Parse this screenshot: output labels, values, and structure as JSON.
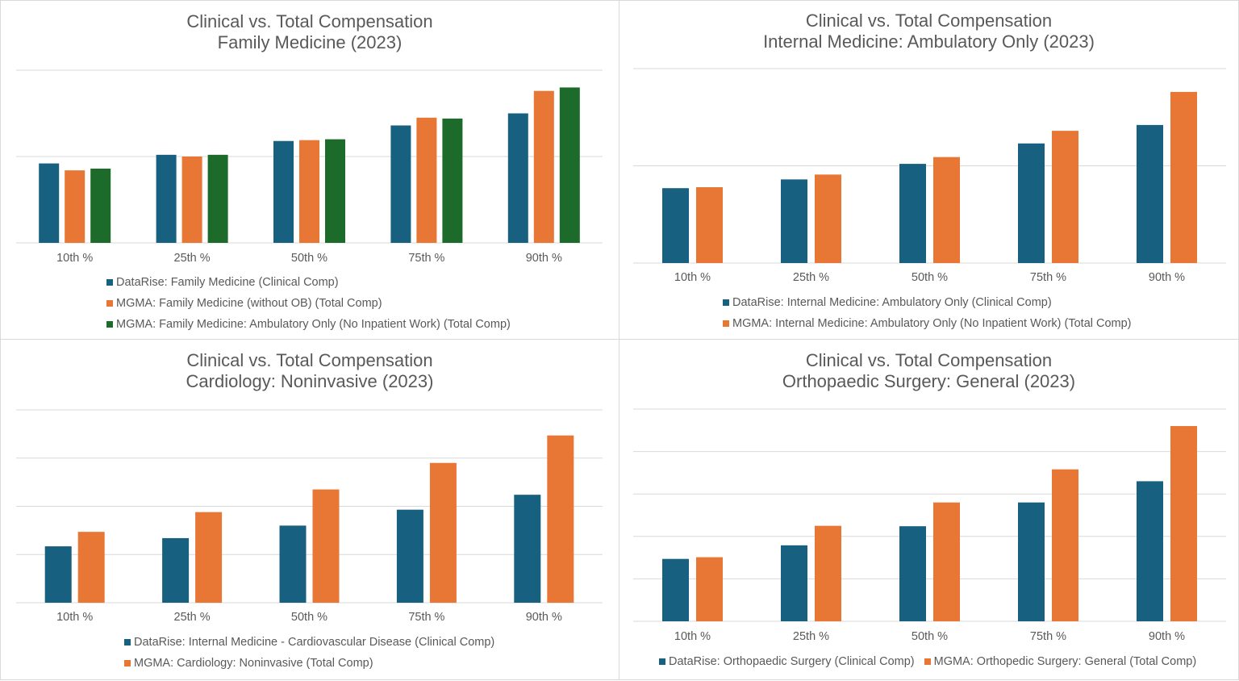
{
  "colors": {
    "datarise": "#17607f",
    "mgma": "#e87634",
    "mgma_amb": "#1c6b2a",
    "grid": "#d9d9d9"
  },
  "chart_data": [
    {
      "type": "bar",
      "title": "Clinical vs. Total Compensation",
      "subtitle": "Family Medicine (2023)",
      "categories": [
        "10th %",
        "25th %",
        "50th %",
        "75th %",
        "90th %"
      ],
      "series": [
        {
          "name": "DataRise: Family Medicine (Clinical Comp)",
          "values": [
            0.92,
            1.02,
            1.18,
            1.36,
            1.5
          ]
        },
        {
          "name": "MGMA: Family Medicine (without OB) (Total Comp)",
          "values": [
            0.84,
            1.0,
            1.19,
            1.45,
            1.76
          ]
        },
        {
          "name": "MGMA: Family Medicine: Ambulatory Only (No Inpatient Work) (Total Comp)",
          "values": [
            0.86,
            1.02,
            1.2,
            1.44,
            1.8
          ]
        }
      ],
      "ylim": [
        0,
        2
      ],
      "grid": true,
      "legend_position": "bottom"
    },
    {
      "type": "bar",
      "title": "Clinical vs. Total Compensation",
      "subtitle": "Internal Medicine: Ambulatory Only (2023)",
      "categories": [
        "10th %",
        "25th %",
        "50th %",
        "75th %",
        "90th %"
      ],
      "series": [
        {
          "name": "DataRise: Internal Medicine: Ambulatory Only (Clinical Comp)",
          "values": [
            0.77,
            0.86,
            1.02,
            1.23,
            1.42
          ]
        },
        {
          "name": "MGMA: Internal Medicine: Ambulatory Only (No Inpatient Work) (Total Comp)",
          "values": [
            0.78,
            0.91,
            1.09,
            1.36,
            1.76
          ]
        }
      ],
      "ylim": [
        0,
        2
      ],
      "grid": true,
      "legend_position": "bottom"
    },
    {
      "type": "bar",
      "title": "Clinical vs. Total Compensation",
      "subtitle": "Cardiology: Noninvasive (2023)",
      "categories": [
        "10th %",
        "25th %",
        "50th %",
        "75th %",
        "90th %"
      ],
      "series": [
        {
          "name": "DataRise: Internal Medicine - Cardiovascular Disease (Clinical Comp)",
          "values": [
            0.117,
            0.134,
            0.16,
            0.193,
            0.224
          ]
        },
        {
          "name": "MGMA: Cardiology: Noninvasive (Total Comp)",
          "values": [
            0.147,
            0.188,
            0.235,
            0.29,
            0.347
          ]
        }
      ],
      "ylim": [
        0,
        0.4
      ],
      "grid": true,
      "legend_position": "bottom"
    },
    {
      "type": "bar",
      "title": "Clinical vs. Total Compensation",
      "subtitle": "Orthopaedic Surgery: General (2023)",
      "categories": [
        "10th %",
        "25th %",
        "50th %",
        "75th %",
        "90th %"
      ],
      "series": [
        {
          "name": "DataRise: Orthopaedic Surgery (Clinical Comp)",
          "values": [
            1.47,
            1.79,
            2.24,
            2.8,
            3.3
          ]
        },
        {
          "name": "MGMA: Orthopedic Surgery: General (Total Comp)",
          "values": [
            1.51,
            2.25,
            2.8,
            3.58,
            4.6
          ]
        }
      ],
      "ylim": [
        0,
        5
      ],
      "grid": true,
      "legend_position": "bottom"
    }
  ]
}
